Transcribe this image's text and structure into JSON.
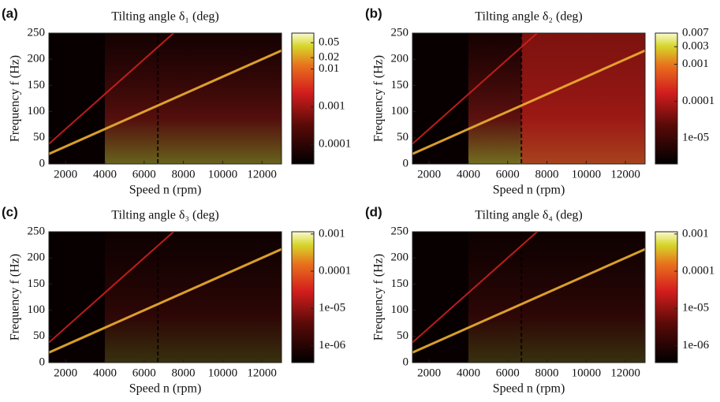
{
  "chart_data": [
    {
      "type": "heatmap",
      "panel_label": "(a)",
      "title": "Tilting angle δ₁ (deg)",
      "x_label": "Speed n (rpm)",
      "y_label": "Frequency f (Hz)",
      "xlim": [
        1150,
        13000
      ],
      "xticks": [
        2000,
        4000,
        6000,
        8000,
        10000,
        12000
      ],
      "ylim": [
        0,
        250
      ],
      "yticks": [
        0,
        50,
        100,
        150,
        200,
        250
      ],
      "colorbar": {
        "scale": "log",
        "clim": [
          3e-05,
          0.09
        ],
        "ticks": [
          0.05,
          0.02,
          0.01,
          0.001,
          0.0001
        ]
      }
    },
    {
      "type": "heatmap",
      "panel_label": "(b)",
      "title": "Tilting angle δ₂ (deg)",
      "x_label": "Speed n (rpm)",
      "y_label": "Frequency f (Hz)",
      "xlim": [
        1150,
        13000
      ],
      "xticks": [
        2000,
        4000,
        6000,
        8000,
        10000,
        12000
      ],
      "ylim": [
        0,
        250
      ],
      "yticks": [
        0,
        50,
        100,
        150,
        200,
        250
      ],
      "colorbar": {
        "scale": "log",
        "clim": [
          2e-06,
          0.007
        ],
        "ticks": [
          0.007,
          0.003,
          0.001,
          0.0001,
          {
            "value": 1e-05,
            "label": "1e-05"
          }
        ]
      }
    },
    {
      "type": "heatmap",
      "panel_label": "(c)",
      "title": "Tilting angle δ₃ (deg)",
      "x_label": "Speed n (rpm)",
      "y_label": "Frequency f (Hz)",
      "xlim": [
        1150,
        13000
      ],
      "xticks": [
        2000,
        4000,
        6000,
        8000,
        10000,
        12000
      ],
      "ylim": [
        0,
        250
      ],
      "yticks": [
        0,
        50,
        100,
        150,
        200,
        250
      ],
      "colorbar": {
        "scale": "log",
        "clim": [
          3.5e-07,
          0.00115
        ],
        "ticks": [
          0.001,
          0.0001,
          {
            "value": 1e-05,
            "label": "1e-05"
          },
          {
            "value": 1e-06,
            "label": "1e-06"
          }
        ]
      }
    },
    {
      "type": "heatmap",
      "panel_label": "(d)",
      "title": "Tilting angle δ₄ (deg)",
      "x_label": "Speed n (rpm)",
      "y_label": "Frequency f (Hz)",
      "xlim": [
        1150,
        13000
      ],
      "xticks": [
        2000,
        4000,
        6000,
        8000,
        10000,
        12000
      ],
      "ylim": [
        0,
        250
      ],
      "yticks": [
        0,
        50,
        100,
        150,
        200,
        250
      ],
      "colorbar": {
        "scale": "log",
        "clim": [
          3.5e-07,
          0.00115
        ],
        "ticks": [
          0.001,
          0.0001,
          {
            "value": 1e-05,
            "label": "1e-05"
          },
          {
            "value": 1e-06,
            "label": "1e-06"
          }
        ]
      }
    }
  ]
}
